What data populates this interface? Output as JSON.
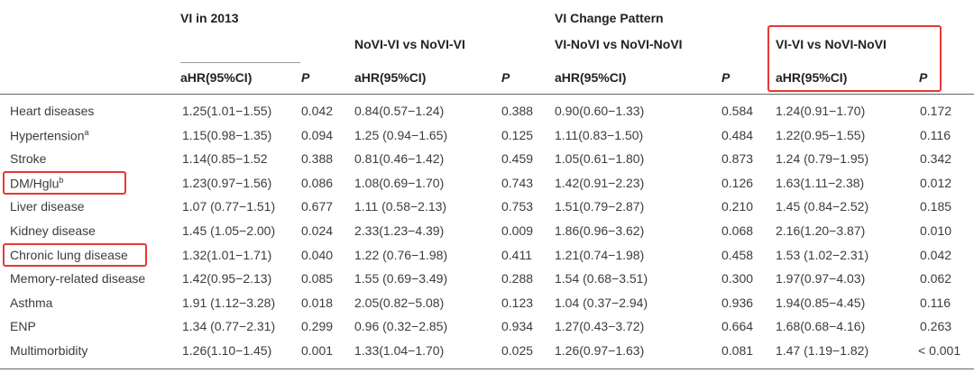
{
  "header": {
    "vi2013": "VI in 2013",
    "change_pattern": "VI Change Pattern",
    "comparisons": [
      "NoVI-VI vs NoVI-VI",
      "VI-NoVI vs NoVI-NoVI",
      "VI-VI vs NoVI-NoVI"
    ],
    "ahr_label": "aHR(95%CI)",
    "p_label": "P"
  },
  "rows": [
    {
      "label": "Heart diseases",
      "sup": "",
      "c1": "1.25(1.01−1.55)",
      "p1": "0.042",
      "c2": "0.84(0.57−1.24)",
      "p2": "0.388",
      "c3": "0.90(0.60−1.33)",
      "p3": "0.584",
      "c4": "1.24(0.91−1.70)",
      "p4": "0.172"
    },
    {
      "label": "Hypertension",
      "sup": "a",
      "c1": "1.15(0.98−1.35)",
      "p1": "0.094",
      "c2": "1.25 (0.94−1.65)",
      "p2": "0.125",
      "c3": "1.11(0.83−1.50)",
      "p3": "0.484",
      "c4": "1.22(0.95−1.55)",
      "p4": "0.116"
    },
    {
      "label": "Stroke",
      "sup": "",
      "c1": "1.14(0.85−1.52",
      "p1": "0.388",
      "c2": "0.81(0.46−1.42)",
      "p2": "0.459",
      "c3": "1.05(0.61−1.80)",
      "p3": "0.873",
      "c4": "1.24 (0.79−1.95)",
      "p4": "0.342"
    },
    {
      "label": "DM/Hglu",
      "sup": "b",
      "c1": "1.23(0.97−1.56)",
      "p1": "0.086",
      "c2": "1.08(0.69−1.70)",
      "p2": "0.743",
      "c3": "1.42(0.91−2.23)",
      "p3": "0.126",
      "c4": "1.63(1.11−2.38)",
      "p4": "0.012"
    },
    {
      "label": "Liver disease",
      "sup": "",
      "c1": "1.07 (0.77−1.51)",
      "p1": "0.677",
      "c2": "1.11 (0.58−2.13)",
      "p2": "0.753",
      "c3": "1.51(0.79−2.87)",
      "p3": "0.210",
      "c4": "1.45 (0.84−2.52)",
      "p4": "0.185"
    },
    {
      "label": "Kidney disease",
      "sup": "",
      "c1": "1.45 (1.05−2.00)",
      "p1": "0.024",
      "c2": "2.33(1.23−4.39)",
      "p2": "0.009",
      "c3": "1.86(0.96−3.62)",
      "p3": "0.068",
      "c4": "2.16(1.20−3.87)",
      "p4": "0.010"
    },
    {
      "label": "Chronic lung disease",
      "sup": "",
      "c1": "1.32(1.01−1.71)",
      "p1": "0.040",
      "c2": "1.22 (0.76−1.98)",
      "p2": "0.411",
      "c3": "1.21(0.74−1.98)",
      "p3": "0.458",
      "c4": "1.53 (1.02−2.31)",
      "p4": "0.042"
    },
    {
      "label": "Memory-related disease",
      "sup": "",
      "c1": "1.42(0.95−2.13)",
      "p1": "0.085",
      "c2": "1.55 (0.69−3.49)",
      "p2": "0.288",
      "c3": "1.54 (0.68−3.51)",
      "p3": "0.300",
      "c4": "1.97(0.97−4.03)",
      "p4": "0.062"
    },
    {
      "label": "Asthma",
      "sup": "",
      "c1": "1.91 (1.12−3.28)",
      "p1": "0.018",
      "c2": "2.05(0.82−5.08)",
      "p2": "0.123",
      "c3": "1.04 (0.37−2.94)",
      "p3": "0.936",
      "c4": "1.94(0.85−4.45)",
      "p4": "0.116"
    },
    {
      "label": "ENP",
      "sup": "",
      "c1": "1.34 (0.77−2.31)",
      "p1": "0.299",
      "c2": "0.96 (0.32−2.85)",
      "p2": "0.934",
      "c3": "1.27(0.43−3.72)",
      "p3": "0.664",
      "c4": "1.68(0.68−4.16)",
      "p4": "0.263"
    },
    {
      "label": "Multimorbidity",
      "sup": "",
      "c1": "1.26(1.10−1.45)",
      "p1": "0.001",
      "c2": "1.33(1.04−1.70)",
      "p2": "0.025",
      "c3": "1.26(0.97−1.63)",
      "p3": "0.081",
      "c4": "1.47 (1.19−1.82)",
      "p4": "< 0.001"
    }
  ],
  "highlight_color": "#e53935"
}
